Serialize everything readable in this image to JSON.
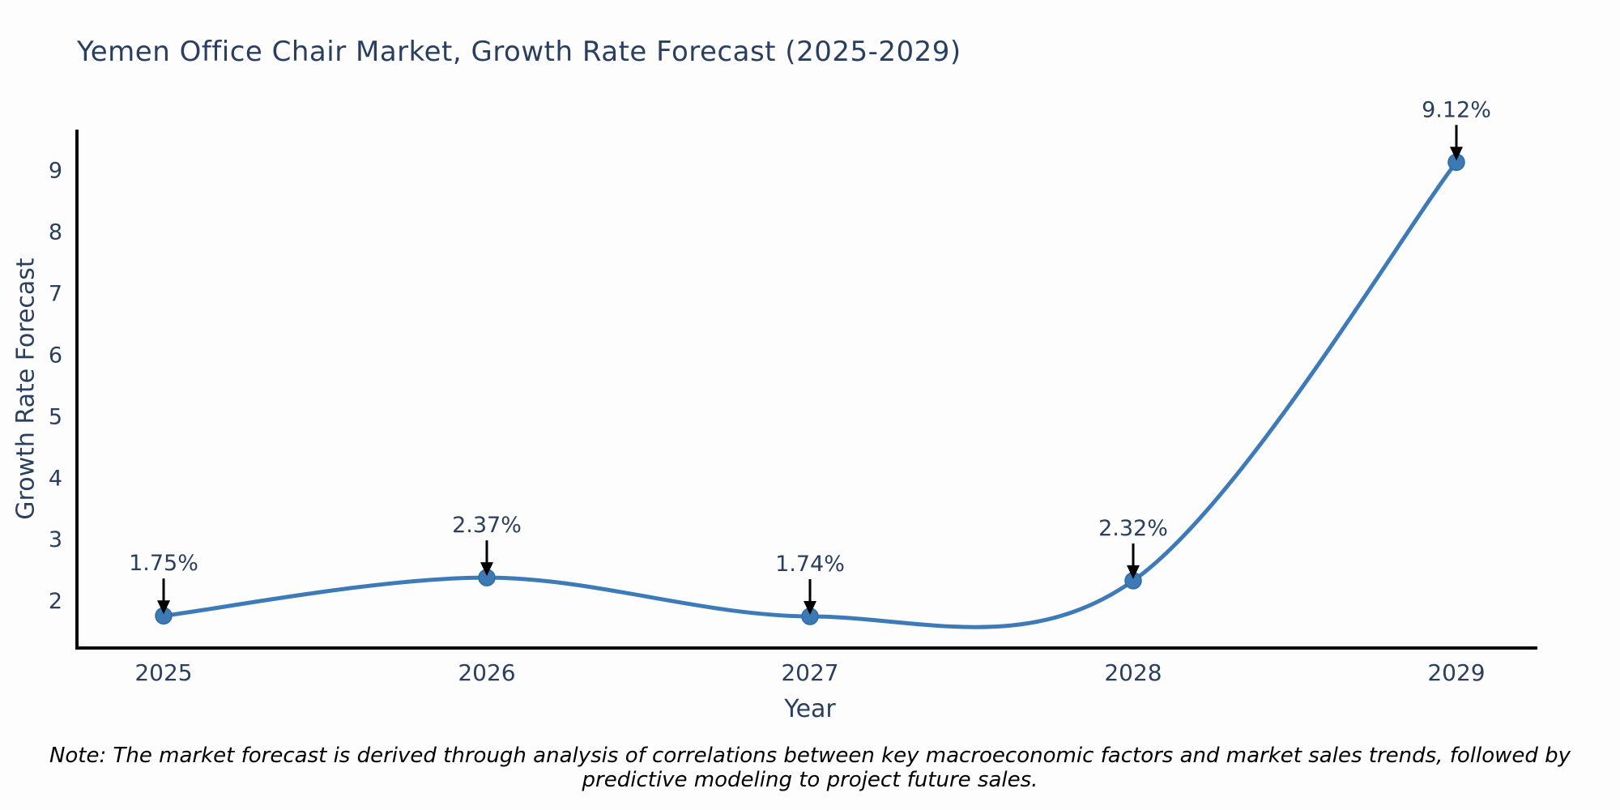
{
  "chart_data": {
    "type": "line",
    "title": "Yemen Office Chair Market, Growth Rate Forecast (2025-2029)",
    "xlabel": "Year",
    "ylabel": "Growth Rate Forecast",
    "categories": [
      "2025",
      "2026",
      "2027",
      "2028",
      "2029"
    ],
    "values": [
      1.75,
      2.37,
      1.74,
      2.32,
      9.12
    ],
    "point_labels": [
      "1.75%",
      "2.37%",
      "1.74%",
      "2.32%",
      "9.12%"
    ],
    "y_ticks": [
      2,
      3,
      4,
      5,
      6,
      7,
      8,
      9
    ],
    "ylim": [
      1.2,
      9.65
    ],
    "line_shape": "spline",
    "grid": false,
    "legend_position": "none",
    "colors": {
      "line": "#3d7ab8",
      "marker": "#3c79b5",
      "marker_edge": "#2e6da4",
      "axis": "#0a0a0a",
      "tick_text": "#2a3f5f",
      "annotation_text": "#2a3f5f",
      "arrow": "#000000",
      "background": "#fdfdfd"
    }
  },
  "note": "Note: The market forecast is derived through analysis of correlations between key macroeconomic factors and market sales trends, followed by predictive modeling to project future sales."
}
